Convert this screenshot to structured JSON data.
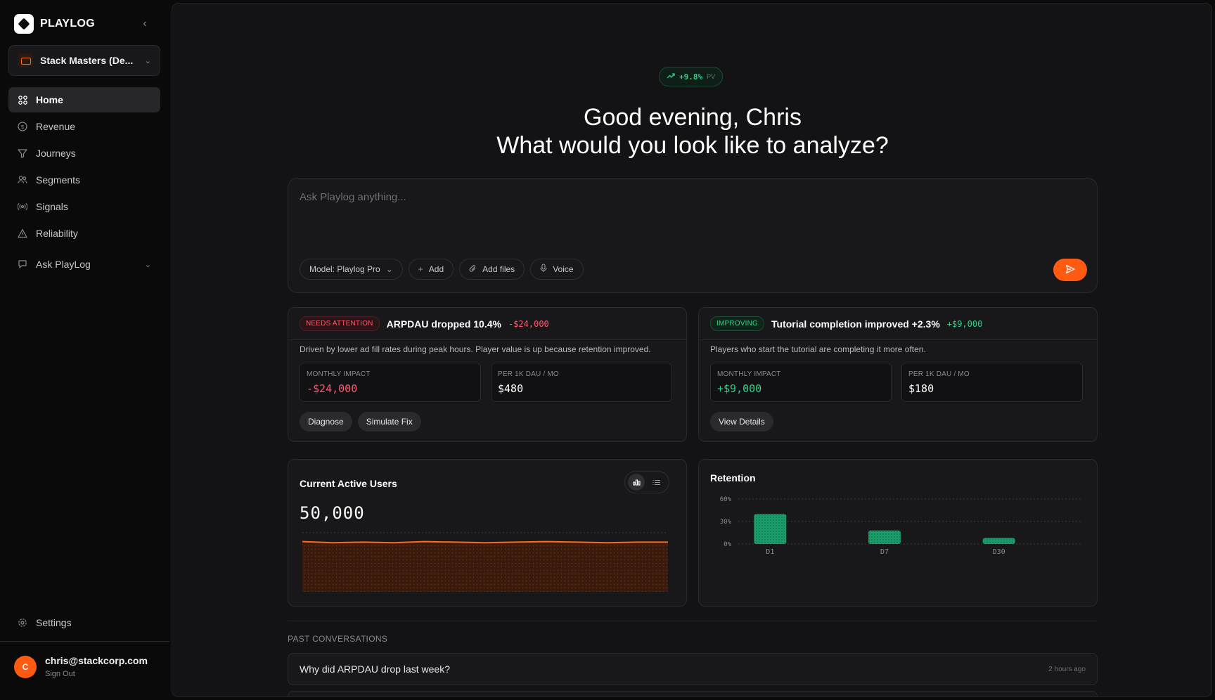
{
  "brand": {
    "name": "PLAYLOG"
  },
  "workspace": {
    "name": "Stack Masters (De..."
  },
  "nav": {
    "items": [
      {
        "label": "Home",
        "icon": "grid-icon"
      },
      {
        "label": "Revenue",
        "icon": "dollar-icon"
      },
      {
        "label": "Journeys",
        "icon": "funnel-icon"
      },
      {
        "label": "Segments",
        "icon": "users-icon"
      },
      {
        "label": "Signals",
        "icon": "broadcast-icon"
      },
      {
        "label": "Reliability",
        "icon": "warning-icon"
      }
    ],
    "ask": {
      "label": "Ask PlayLog"
    },
    "settings": {
      "label": "Settings"
    }
  },
  "user": {
    "initial": "C",
    "email": "chris@stackcorp.com",
    "signout": "Sign Out"
  },
  "header": {
    "pill_value": "+9.8%",
    "pill_label": "PV",
    "greeting_line1": "Good evening, Chris",
    "greeting_line2": "What would you look like to analyze?"
  },
  "ask": {
    "placeholder": "Ask Playlog anything...",
    "model_label": "Model: Playlog Pro",
    "add_label": "Add",
    "files_label": "Add files",
    "voice_label": "Voice"
  },
  "insights": [
    {
      "badge": "NEEDS ATTENTION",
      "title": "ARPDAU dropped 10.4%",
      "delta": "-$24,000",
      "desc": "Driven by lower ad fill rates during peak hours. Player value is up because retention improved.",
      "metric1_label": "MONTHLY IMPACT",
      "metric1_value": "-$24,000",
      "metric2_label": "PER 1K DAU / MO",
      "metric2_value": "$480",
      "action1": "Diagnose",
      "action2": "Simulate Fix"
    },
    {
      "badge": "IMPROVING",
      "title": "Tutorial completion improved +2.3%",
      "delta": "+$9,000",
      "desc": "Players who start the tutorial are completing it more often.",
      "metric1_label": "MONTHLY IMPACT",
      "metric1_value": "+$9,000",
      "metric2_label": "PER 1K DAU / MO",
      "metric2_value": "$180",
      "action1": "View Details"
    }
  ],
  "active_users": {
    "title": "Current Active Users",
    "value": "50,000"
  },
  "retention": {
    "title": "Retention"
  },
  "chart_data": [
    {
      "type": "area",
      "title": "Current Active Users",
      "x": [
        0,
        1,
        2,
        3,
        4,
        5,
        6,
        7,
        8,
        9,
        10,
        11,
        12
      ],
      "values": [
        0.85,
        0.83,
        0.84,
        0.83,
        0.85,
        0.84,
        0.83,
        0.84,
        0.85,
        0.84,
        0.83,
        0.84,
        0.84
      ],
      "color": "#ff6a1a"
    },
    {
      "type": "bar",
      "title": "Retention",
      "categories": [
        "D1",
        "D7",
        "D30"
      ],
      "values": [
        40,
        18,
        8
      ],
      "yticks": [
        "60%",
        "30%",
        "0%"
      ],
      "ylim": [
        0,
        60
      ],
      "color": "#1fb27a"
    }
  ],
  "past": {
    "label": "PAST CONVERSATIONS",
    "items": [
      {
        "question": "Why did ARPDAU drop last week?",
        "time": "2 hours ago"
      }
    ]
  },
  "colors": {
    "accent": "#ff5a12",
    "positive": "#2ed38a",
    "negative": "#ff5a6e"
  }
}
